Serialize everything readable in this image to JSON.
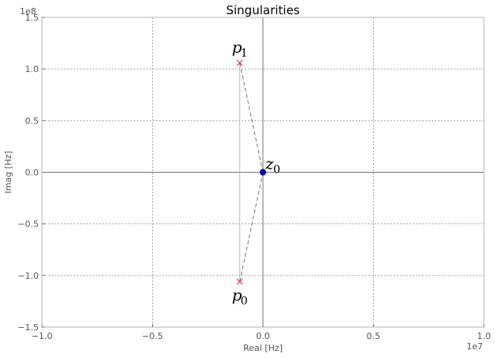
{
  "chart_data": {
    "type": "scatter",
    "title": "Singularities",
    "xlabel": "Real [Hz]",
    "ylabel": "Imag [Hz]",
    "x_offset_label": "1e7",
    "y_offset_label": "1e8",
    "xlim": [
      -1.0,
      1.0
    ],
    "ylim": [
      -1.5,
      1.5
    ],
    "xticks": [
      "−1.0",
      "−0.5",
      "0.0",
      "0.5",
      "1.0"
    ],
    "xtick_values": [
      -1.0,
      -0.5,
      0.0,
      0.5,
      1.0
    ],
    "yticks": [
      "−1.5",
      "−1.0",
      "−0.5",
      "0.0",
      "0.5",
      "1.0",
      "1.5"
    ],
    "ytick_values": [
      -1.5,
      -1.0,
      -0.5,
      0.0,
      0.5,
      1.0,
      1.5
    ],
    "grid": true,
    "poles": [
      {
        "label": "p",
        "sub": "1",
        "x": -0.105,
        "y": 1.06
      },
      {
        "label": "p",
        "sub": "0",
        "x": -0.105,
        "y": -1.06
      }
    ],
    "zeros": [
      {
        "label": "z",
        "sub": "0",
        "x": 0.0,
        "y": 0.0
      }
    ],
    "colors": {
      "pole": "#e8262a",
      "zero": "#0b12a8",
      "grid": "#a8a8a8",
      "axis_line": "#777777",
      "frame": "#b5b5b5"
    }
  }
}
